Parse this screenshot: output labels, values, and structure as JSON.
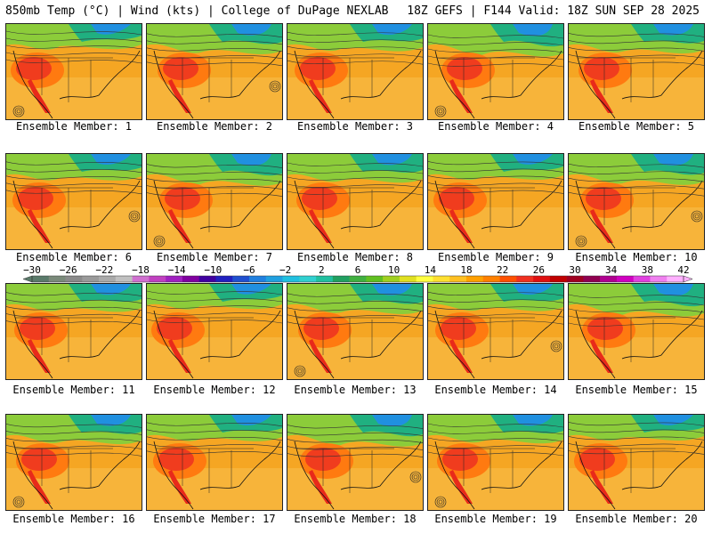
{
  "header": {
    "left": "850mb Temp (°C) | Wind (kts) | College of DuPage NEXLAB",
    "right": "18Z GEFS | F144 Valid: 18Z SUN SEP 28 2025"
  },
  "panels": [
    {
      "label": "Ensemble Member: 1"
    },
    {
      "label": "Ensemble Member: 2"
    },
    {
      "label": "Ensemble Member: 3"
    },
    {
      "label": "Ensemble Member: 4"
    },
    {
      "label": "Ensemble Member: 5"
    },
    {
      "label": "Ensemble Member: 6"
    },
    {
      "label": "Ensemble Member: 7"
    },
    {
      "label": "Ensemble Member: 8"
    },
    {
      "label": "Ensemble Member: 9"
    },
    {
      "label": "Ensemble Member: 10"
    },
    {
      "label": "Ensemble Member: 11"
    },
    {
      "label": "Ensemble Member: 12"
    },
    {
      "label": "Ensemble Member: 13"
    },
    {
      "label": "Ensemble Member: 14"
    },
    {
      "label": "Ensemble Member: 15"
    },
    {
      "label": "Ensemble Member: 16"
    },
    {
      "label": "Ensemble Member: 17"
    },
    {
      "label": "Ensemble Member: 18"
    },
    {
      "label": "Ensemble Member: 19"
    },
    {
      "label": "Ensemble Member: 20"
    }
  ],
  "colorbar": {
    "ticks": [
      "−30",
      "−26",
      "−22",
      "−18",
      "−14",
      "−10",
      "−6",
      "−2",
      "2",
      "6",
      "10",
      "14",
      "18",
      "22",
      "26",
      "30",
      "34",
      "38",
      "42"
    ],
    "colors": [
      "#5a7a6a",
      "#7a8a7a",
      "#8a8a8a",
      "#9a9a9a",
      "#aaaaaa",
      "#c0c0c0",
      "#d070d0",
      "#c040c0",
      "#a020c0",
      "#8000a0",
      "#4000a0",
      "#2020c0",
      "#2050d0",
      "#2080e0",
      "#20a0e0",
      "#20c0e0",
      "#30d0d0",
      "#20c0a0",
      "#20a060",
      "#40b040",
      "#60c020",
      "#a0d020",
      "#e0e020",
      "#ffff40",
      "#ffe030",
      "#ffc020",
      "#ffa000",
      "#ff8000",
      "#ff5000",
      "#f03020",
      "#e01010",
      "#c00000",
      "#a00020",
      "#900050",
      "#b00090",
      "#d000c0",
      "#e040e0",
      "#f080f0",
      "#ffb0ff"
    ]
  }
}
